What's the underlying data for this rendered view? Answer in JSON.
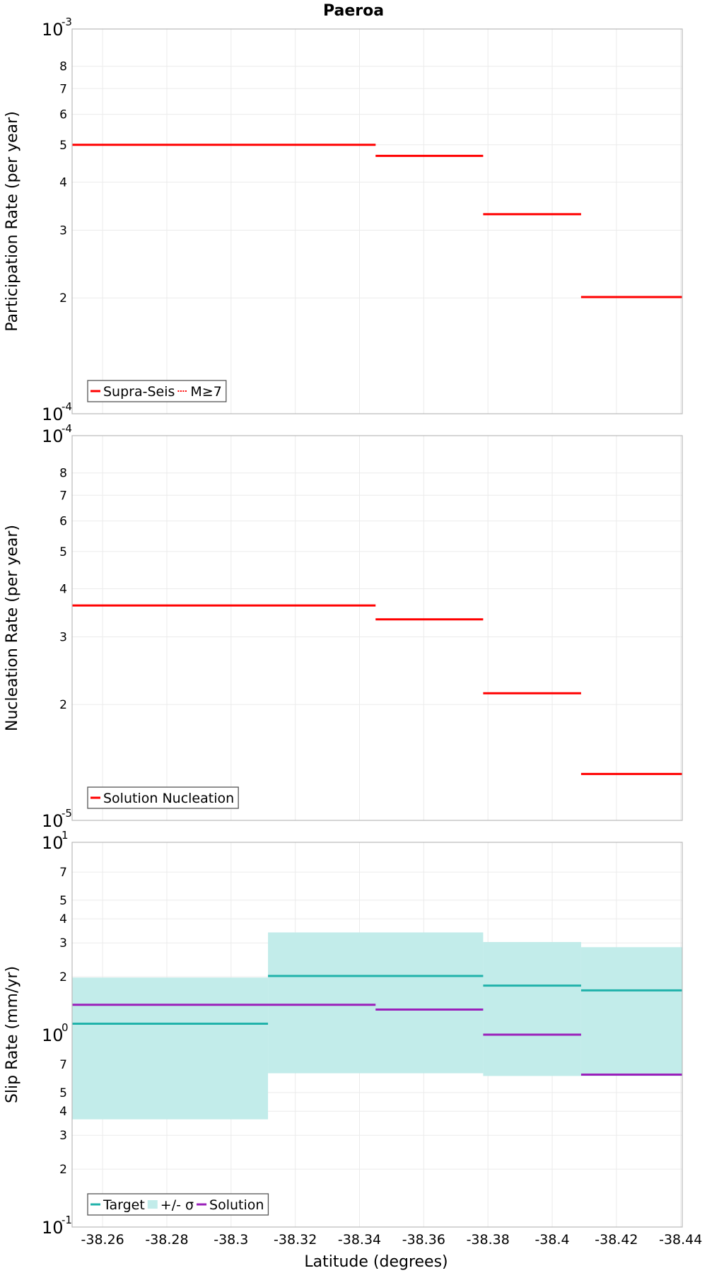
{
  "figure": {
    "title": "Paeroa",
    "xlabel": "Latitude (degrees)",
    "x_ticks": [
      "-38.26",
      "-38.28",
      "-38.3",
      "-38.32",
      "-38.34",
      "-38.36",
      "-38.38",
      "-38.4",
      "-38.42",
      "-38.44"
    ]
  },
  "chart_data": [
    {
      "type": "line",
      "title": "Paeroa",
      "xlabel": "Latitude (degrees)",
      "ylabel": "Participation Rate (per year)",
      "y_scale": "log",
      "xlim": [
        -38.2505,
        -38.4405
      ],
      "ylim": [
        0.0001,
        0.001
      ],
      "y_major_ticks": [
        {
          "base": "10",
          "exp": "-4",
          "value": 0.0001
        },
        {
          "base": "10",
          "exp": "-3",
          "value": 0.001
        }
      ],
      "y_minor_ticks": [
        {
          "label": "2",
          "value": 0.0002
        },
        {
          "label": "3",
          "value": 0.0003
        },
        {
          "label": "4",
          "value": 0.0004
        },
        {
          "label": "5",
          "value": 0.0005
        },
        {
          "label": "6",
          "value": 0.0006
        },
        {
          "label": "7",
          "value": 0.0007
        },
        {
          "label": "8",
          "value": 0.0008
        }
      ],
      "legend": {
        "position": "bottom-left",
        "entries": [
          {
            "label": "Supra-Seis",
            "style": "solid",
            "color": "#ff0000"
          },
          {
            "label": "M≥7",
            "style": "dotted",
            "color": "#ff0000"
          }
        ]
      },
      "series": [
        {
          "name": "Supra-Seis",
          "color": "#ff0000",
          "style": "solid",
          "segments": [
            {
              "x0": -38.2505,
              "x1": -38.345,
              "y": 0.0005
            },
            {
              "x0": -38.345,
              "x1": -38.3785,
              "y": 0.000468
            },
            {
              "x0": -38.3785,
              "x1": -38.409,
              "y": 0.00033
            },
            {
              "x0": -38.409,
              "x1": -38.4405,
              "y": 0.000201
            }
          ]
        },
        {
          "name": "M≥7",
          "color": "#ff0000",
          "style": "dotted",
          "segments": [
            {
              "x0": -38.2505,
              "x1": -38.345,
              "y": 0.0005
            },
            {
              "x0": -38.409,
              "x1": -38.4405,
              "y": 0.000201
            }
          ]
        }
      ]
    },
    {
      "type": "line",
      "xlabel": "Latitude (degrees)",
      "ylabel": "Nucleation Rate (per year)",
      "y_scale": "log",
      "xlim": [
        -38.2505,
        -38.4405
      ],
      "ylim": [
        1e-05,
        0.0001
      ],
      "y_major_ticks": [
        {
          "base": "10",
          "exp": "-5",
          "value": 1e-05
        },
        {
          "base": "10",
          "exp": "-4",
          "value": 0.0001
        }
      ],
      "y_minor_ticks": [
        {
          "label": "2",
          "value": 2e-05
        },
        {
          "label": "3",
          "value": 3e-05
        },
        {
          "label": "4",
          "value": 4e-05
        },
        {
          "label": "5",
          "value": 5e-05
        },
        {
          "label": "6",
          "value": 6e-05
        },
        {
          "label": "7",
          "value": 7e-05
        },
        {
          "label": "8",
          "value": 8e-05
        }
      ],
      "legend": {
        "position": "bottom-left",
        "entries": [
          {
            "label": "Solution Nucleation",
            "style": "solid",
            "color": "#ff0000"
          }
        ]
      },
      "series": [
        {
          "name": "Solution Nucleation",
          "color": "#ff0000",
          "style": "solid",
          "segments": [
            {
              "x0": -38.2505,
              "x1": -38.345,
              "y": 3.62e-05
            },
            {
              "x0": -38.345,
              "x1": -38.3785,
              "y": 3.33e-05
            },
            {
              "x0": -38.3785,
              "x1": -38.409,
              "y": 2.14e-05
            },
            {
              "x0": -38.409,
              "x1": -38.4405,
              "y": 1.32e-05
            }
          ]
        }
      ]
    },
    {
      "type": "line",
      "xlabel": "Latitude (degrees)",
      "ylabel": "Slip Rate (mm/yr)",
      "y_scale": "log",
      "xlim": [
        -38.2505,
        -38.4405
      ],
      "ylim": [
        0.1,
        10
      ],
      "y_major_ticks": [
        {
          "base": "10",
          "exp": "-1",
          "value": 0.1
        },
        {
          "base": "10",
          "exp": "0",
          "value": 1
        },
        {
          "base": "10",
          "exp": "1",
          "value": 10
        }
      ],
      "y_minor_ticks": [
        {
          "label": "2",
          "value": 0.2
        },
        {
          "label": "3",
          "value": 0.3
        },
        {
          "label": "4",
          "value": 0.4
        },
        {
          "label": "5",
          "value": 0.5
        },
        {
          "label": "7",
          "value": 0.7
        },
        {
          "label": "2",
          "value": 2
        },
        {
          "label": "3",
          "value": 3
        },
        {
          "label": "4",
          "value": 4
        },
        {
          "label": "5",
          "value": 5
        },
        {
          "label": "7",
          "value": 7
        }
      ],
      "legend": {
        "position": "bottom-left",
        "entries": [
          {
            "label": "Target",
            "style": "solid",
            "color": "#20b2aa"
          },
          {
            "label": "+/- σ",
            "style": "band",
            "color": "#c2ecea"
          },
          {
            "label": "Solution",
            "style": "solid",
            "color": "#9a1fba"
          }
        ]
      },
      "bands": [
        {
          "name": "+/- σ",
          "color": "#c2ecea",
          "segments": [
            {
              "x0": -38.2505,
              "x1": -38.3115,
              "y_low": 0.363,
              "y_high": 1.98
            },
            {
              "x0": -38.3115,
              "x1": -38.3785,
              "y_low": 0.63,
              "y_high": 3.4
            },
            {
              "x0": -38.3785,
              "x1": -38.409,
              "y_low": 0.61,
              "y_high": 3.03
            },
            {
              "x0": -38.409,
              "x1": -38.4405,
              "y_low": 0.61,
              "y_high": 2.85
            }
          ]
        }
      ],
      "series": [
        {
          "name": "Target",
          "color": "#20b2aa",
          "style": "solid",
          "segments": [
            {
              "x0": -38.2505,
              "x1": -38.3115,
              "y": 1.14
            },
            {
              "x0": -38.3115,
              "x1": -38.3785,
              "y": 2.02
            },
            {
              "x0": -38.3785,
              "x1": -38.409,
              "y": 1.8
            },
            {
              "x0": -38.409,
              "x1": -38.4405,
              "y": 1.7
            }
          ]
        },
        {
          "name": "Solution",
          "color": "#9a1fba",
          "style": "solid",
          "segments": [
            {
              "x0": -38.2505,
              "x1": -38.345,
              "y": 1.43
            },
            {
              "x0": -38.345,
              "x1": -38.3785,
              "y": 1.35
            },
            {
              "x0": -38.3785,
              "x1": -38.409,
              "y": 1.0
            },
            {
              "x0": -38.409,
              "x1": -38.4405,
              "y": 0.62
            }
          ]
        }
      ]
    }
  ]
}
